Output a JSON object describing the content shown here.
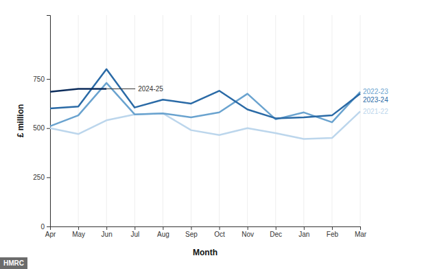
{
  "chart_data": {
    "type": "line",
    "x_label": "Month",
    "y_label": "£ million",
    "source": "HMRC",
    "categories": [
      "Apr",
      "May",
      "Jun",
      "Jul",
      "Aug",
      "Sep",
      "Oct",
      "Nov",
      "Dec",
      "Jan",
      "Feb",
      "Mar"
    ],
    "ylim": [
      0,
      1075
    ],
    "yticks": [
      0,
      250,
      500,
      750
    ],
    "grid": true,
    "series": [
      {
        "name": "2021-22",
        "color": "#bcd6ec",
        "values": [
          500,
          470,
          540,
          570,
          575,
          490,
          465,
          500,
          475,
          445,
          450,
          585
        ]
      },
      {
        "name": "2022-23",
        "color": "#6aa3cf",
        "values": [
          510,
          565,
          730,
          570,
          575,
          555,
          580,
          675,
          545,
          580,
          530,
          685
        ]
      },
      {
        "name": "2023-24",
        "color": "#2a6aa6",
        "values": [
          600,
          610,
          800,
          605,
          645,
          625,
          690,
          595,
          550,
          555,
          565,
          675
        ]
      },
      {
        "name": "2024-25",
        "color": "#0d2d5c",
        "values": [
          685,
          700,
          700,
          null,
          null,
          null,
          null,
          null,
          null,
          null,
          null,
          null
        ]
      }
    ]
  }
}
